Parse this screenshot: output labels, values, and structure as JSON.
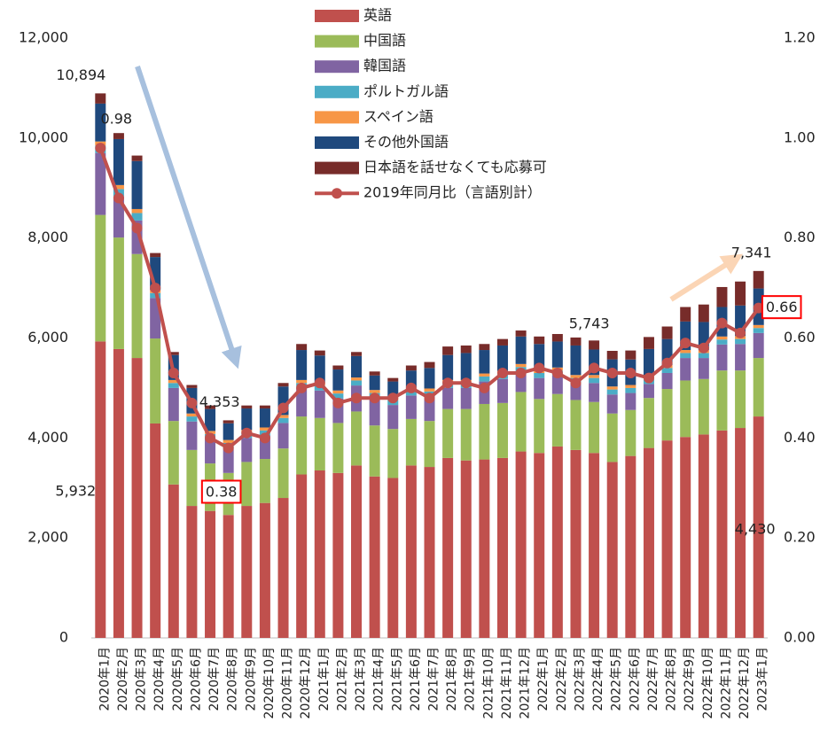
{
  "chart_data": {
    "type": "bar",
    "stacked": true,
    "categories": [
      "2020年1月",
      "2020年2月",
      "2020年3月",
      "2020年4月",
      "2020年5月",
      "2020年6月",
      "2020年7月",
      "2020年8月",
      "2020年9月",
      "2020年10月",
      "2020年11月",
      "2020年12月",
      "2021年1月",
      "2021年2月",
      "2021年3月",
      "2021年4月",
      "2021年5月",
      "2021年6月",
      "2021年7月",
      "2021年8月",
      "2021年9月",
      "2021年10月",
      "2021年11月",
      "2021年12月",
      "2022年1月",
      "2022年2月",
      "2022年3月",
      "2022年4月",
      "2022年5月",
      "2022年6月",
      "2022年7月",
      "2022年8月",
      "2022年9月",
      "2022年10月",
      "2022年11月",
      "2022年12月",
      "2023年1月"
    ],
    "series": [
      {
        "name": "英語",
        "color": "#c0504d",
        "values": [
          5932,
          5780,
          5600,
          4290,
          3070,
          2640,
          2540,
          2460,
          2640,
          2700,
          2800,
          3270,
          3350,
          3300,
          3450,
          3230,
          3200,
          3450,
          3420,
          3600,
          3550,
          3570,
          3600,
          3730,
          3700,
          3830,
          3760,
          3700,
          3520,
          3640,
          3800,
          3950,
          4020,
          4070,
          4150,
          4200,
          4430
        ]
      },
      {
        "name": "中国語",
        "color": "#9bbb59",
        "values": [
          2530,
          2230,
          2080,
          1700,
          1270,
          1120,
          950,
          840,
          880,
          880,
          990,
          1160,
          1050,
          1000,
          1080,
          1020,
          980,
          930,
          920,
          980,
          1030,
          1110,
          1100,
          1190,
          1080,
          1050,
          1000,
          1020,
          970,
          920,
          1000,
          1030,
          1130,
          1110,
          1200,
          1150,
          1170
        ]
      },
      {
        "name": "韓国語",
        "color": "#8064a2",
        "values": [
          1240,
          820,
          670,
          810,
          660,
          570,
          490,
          500,
          480,
          470,
          510,
          570,
          550,
          490,
          520,
          550,
          480,
          470,
          490,
          420,
          420,
          450,
          480,
          400,
          420,
          370,
          340,
          380,
          380,
          340,
          280,
          320,
          450,
          420,
          520,
          530,
          500
        ]
      },
      {
        "name": "ポルトガル語",
        "color": "#4bacc6",
        "values": [
          150,
          150,
          150,
          100,
          100,
          100,
          100,
          100,
          100,
          100,
          100,
          100,
          100,
          100,
          100,
          100,
          100,
          100,
          100,
          100,
          100,
          100,
          100,
          100,
          100,
          100,
          100,
          100,
          100,
          100,
          100,
          100,
          100,
          100,
          100,
          100,
          100
        ]
      },
      {
        "name": "スペイン語",
        "color": "#f79646",
        "values": [
          80,
          80,
          80,
          60,
          60,
          60,
          60,
          60,
          60,
          60,
          60,
          60,
          60,
          60,
          60,
          60,
          60,
          60,
          60,
          60,
          60,
          60,
          60,
          60,
          60,
          60,
          60,
          60,
          60,
          60,
          60,
          60,
          60,
          60,
          60,
          60,
          60
        ]
      },
      {
        "name": "その他外国語",
        "color": "#1f497d",
        "values": [
          758,
          920,
          960,
          660,
          500,
          510,
          440,
          333,
          430,
          380,
          570,
          600,
          540,
          420,
          430,
          290,
          310,
          340,
          410,
          500,
          540,
          470,
          510,
          550,
          520,
          520,
          590,
          510,
          543,
          510,
          540,
          520,
          570,
          560,
          590,
          610,
          731
        ]
      },
      {
        "name": "日本語を話せなくても応募可",
        "color": "#772c2a",
        "values": [
          204,
          120,
          110,
          80,
          60,
          60,
          70,
          60,
          60,
          60,
          70,
          120,
          100,
          80,
          80,
          80,
          70,
          100,
          120,
          170,
          150,
          120,
          130,
          120,
          150,
          150,
          160,
          180,
          170,
          180,
          240,
          250,
          290,
          350,
          400,
          480,
          350
        ]
      },
      {
        "name": "2019年同月比（言語別計）",
        "color": "#c0504d",
        "type": "line",
        "axis": "y2",
        "values": [
          0.98,
          0.88,
          0.82,
          0.7,
          0.53,
          0.47,
          0.4,
          0.38,
          0.41,
          0.4,
          0.46,
          0.5,
          0.51,
          0.47,
          0.48,
          0.48,
          0.48,
          0.5,
          0.48,
          0.51,
          0.51,
          0.5,
          0.53,
          0.53,
          0.54,
          0.53,
          0.51,
          0.54,
          0.53,
          0.53,
          0.52,
          0.55,
          0.59,
          0.58,
          0.63,
          0.61,
          0.66
        ]
      }
    ],
    "ylim": [
      0,
      12000
    ],
    "yticks": [
      0,
      {
        "value": 2000,
        "label": "2,000"
      },
      {
        "value": 4000,
        "label": "4,000"
      },
      {
        "value": 6000,
        "label": "6,000"
      },
      {
        "value": 8000,
        "label": "8,000"
      },
      {
        "value": 10000,
        "label": "10,000"
      },
      {
        "value": 12000,
        "label": "12,000"
      }
    ],
    "y2lim": [
      0,
      1.2
    ],
    "y2ticks": [
      {
        "value": 0,
        "label": "0.00"
      },
      {
        "value": 0.2,
        "label": "0.20"
      },
      {
        "value": 0.4,
        "label": "0.40"
      },
      {
        "value": 0.6,
        "label": "0.60"
      },
      {
        "value": 0.8,
        "label": "0.80"
      },
      {
        "value": 1.0,
        "label": "1.00"
      },
      {
        "value": 1.2,
        "label": "1.20"
      }
    ],
    "grid": false,
    "box_color": "#ff0000",
    "annotations": [
      {
        "text": "10,894",
        "category": "2020年1月",
        "value": 10894
      },
      {
        "text": "5,932",
        "category": "2020年1月",
        "value": 5932
      },
      {
        "text": "0.98",
        "category": "2020年1月",
        "value": 0.98,
        "axis": "y2"
      },
      {
        "text": "4,353",
        "category": "2020年8月",
        "value": 4353
      },
      {
        "text": "0.38",
        "category": "2020年8月",
        "value": 0.38,
        "axis": "y2",
        "box": true
      },
      {
        "text": "5,743",
        "category": "2022年5月",
        "value": 5743
      },
      {
        "text": "7,341",
        "category": "2023年1月",
        "value": 7341
      },
      {
        "text": "4,430",
        "category": "2023年1月",
        "value": 4430
      },
      {
        "text": "0.66",
        "category": "2023年1月",
        "value": 0.66,
        "axis": "y2",
        "box": true
      }
    ]
  }
}
